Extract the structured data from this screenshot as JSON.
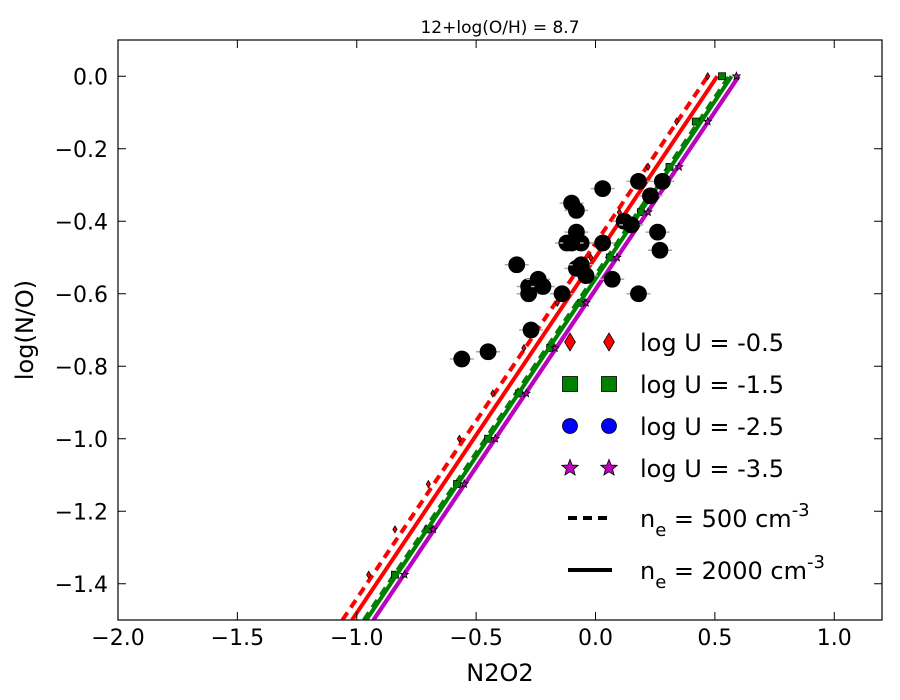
{
  "chart_data": {
    "type": "scatter",
    "title": "12+log(O/H) = 8.7",
    "xlabel": "N2O2",
    "ylabel": "log(N/O)",
    "xlim": [
      -2.0,
      1.2
    ],
    "ylim": [
      -1.5,
      0.1
    ],
    "x_ticks": [
      -2.0,
      -1.5,
      -1.0,
      -0.5,
      0.0,
      0.5,
      1.0
    ],
    "x_tick_labels": [
      "−2.0",
      "−1.5",
      "−1.0",
      "−0.5",
      "0.0",
      "0.5",
      "1.0"
    ],
    "y_ticks": [
      0.0,
      -0.2,
      -0.4,
      -0.6,
      -0.8,
      -1.0,
      -1.2,
      -1.4
    ],
    "y_tick_labels": [
      "0.0",
      "−0.2",
      "−0.4",
      "−0.6",
      "−0.8",
      "−1.0",
      "−1.2",
      "−1.4"
    ],
    "grid": false,
    "legend_position": "lower-right",
    "observations": {
      "name": "observed galaxies",
      "color": "#000000",
      "x": [
        -0.56,
        -0.45,
        -0.33,
        -0.28,
        -0.28,
        -0.24,
        -0.22,
        -0.27,
        -0.14,
        -0.12,
        -0.1,
        -0.08,
        -0.08,
        -0.06,
        -0.04,
        -0.08,
        -0.06,
        0.03,
        0.03,
        0.07,
        0.12,
        0.15,
        0.18,
        0.18,
        0.23,
        0.26,
        0.28,
        0.27,
        -0.1
      ],
      "y": [
        -0.78,
        -0.76,
        -0.52,
        -0.58,
        -0.6,
        -0.56,
        -0.58,
        -0.7,
        -0.6,
        -0.46,
        -0.35,
        -0.37,
        -0.43,
        -0.46,
        -0.55,
        -0.53,
        -0.52,
        -0.31,
        -0.46,
        -0.56,
        -0.4,
        -0.41,
        -0.29,
        -0.6,
        -0.33,
        -0.43,
        -0.29,
        -0.48,
        -0.46
      ]
    },
    "series": [
      {
        "name": "log U = -0.5, n_e = 500",
        "color": "#ff0000",
        "marker": "diamond",
        "style": "dashed",
        "line_x": [
          -1.06,
          0.47
        ],
        "line_y": [
          -1.5,
          0.0
        ],
        "marker_x": [
          -0.95,
          -0.84,
          -0.7,
          -0.57,
          -0.43,
          -0.3,
          -0.16,
          -0.02,
          0.1,
          0.22,
          0.34,
          0.47
        ],
        "marker_y": [
          -1.375,
          -1.25,
          -1.125,
          -1.0,
          -0.875,
          -0.75,
          -0.625,
          -0.5,
          -0.375,
          -0.25,
          -0.125,
          0.0
        ]
      },
      {
        "name": "log U = -0.5, n_e = 2000",
        "color": "#ff0000",
        "marker": "diamond",
        "style": "solid",
        "line_x": [
          -1.02,
          0.51
        ],
        "line_y": [
          -1.5,
          0.0
        ],
        "marker_x": [],
        "marker_y": []
      },
      {
        "name": "log U = -1.5, n_e = 500",
        "color": "#008000",
        "marker": "square",
        "style": "dashed",
        "line_x": [
          -0.97,
          0.56
        ],
        "line_y": [
          -1.5,
          0.0
        ],
        "marker_x": [
          -0.84,
          -0.7,
          -0.58,
          -0.45,
          -0.32,
          -0.19,
          -0.06,
          0.06,
          0.19,
          0.31,
          0.42,
          0.53
        ],
        "marker_y": [
          -1.375,
          -1.25,
          -1.125,
          -1.0,
          -0.875,
          -0.75,
          -0.625,
          -0.5,
          -0.375,
          -0.25,
          -0.125,
          0.0
        ]
      },
      {
        "name": "log U = -1.5, n_e = 2000",
        "color": "#008000",
        "marker": "square",
        "style": "solid",
        "line_x": [
          -0.96,
          0.57
        ],
        "line_y": [
          -1.5,
          0.0
        ],
        "marker_x": [],
        "marker_y": []
      },
      {
        "name": "log U = -2.5",
        "color": "#0000ff",
        "marker": "circle",
        "style": "solid",
        "line_x": [
          -0.93,
          0.6
        ],
        "line_y": [
          -1.5,
          0.0
        ],
        "marker_x": [],
        "marker_y": []
      },
      {
        "name": "log U = -3.5",
        "color": "#bf00bf",
        "marker": "star",
        "style": "solid",
        "line_x": [
          -0.93,
          0.6
        ],
        "line_y": [
          -1.5,
          0.0
        ],
        "marker_x": [
          -0.8,
          -0.68,
          -0.55,
          -0.42,
          -0.29,
          -0.17,
          -0.04,
          0.09,
          0.22,
          0.35,
          0.47,
          0.59
        ],
        "marker_y": [
          -1.375,
          -1.25,
          -1.125,
          -1.0,
          -0.875,
          -0.75,
          -0.625,
          -0.5,
          -0.375,
          -0.25,
          -0.125,
          0.0
        ]
      }
    ],
    "legend": [
      {
        "label": "log U = -0.5",
        "marker": "diamond",
        "color": "#ff0000"
      },
      {
        "label": "log U = -1.5",
        "marker": "square",
        "color": "#008000"
      },
      {
        "label": "log U = -2.5",
        "marker": "circle",
        "color": "#0000ff"
      },
      {
        "label": "log U = -3.5",
        "marker": "star",
        "color": "#bf00bf"
      },
      {
        "label_main": "n",
        "label_sub": "e",
        "label_mid": " = 500 cm",
        "label_sup": "-3",
        "style": "dashed",
        "color": "#000000"
      },
      {
        "label_main": "n",
        "label_sub": "e",
        "label_mid": " = 2000 cm",
        "label_sup": "-3",
        "style": "solid",
        "color": "#000000"
      }
    ]
  }
}
